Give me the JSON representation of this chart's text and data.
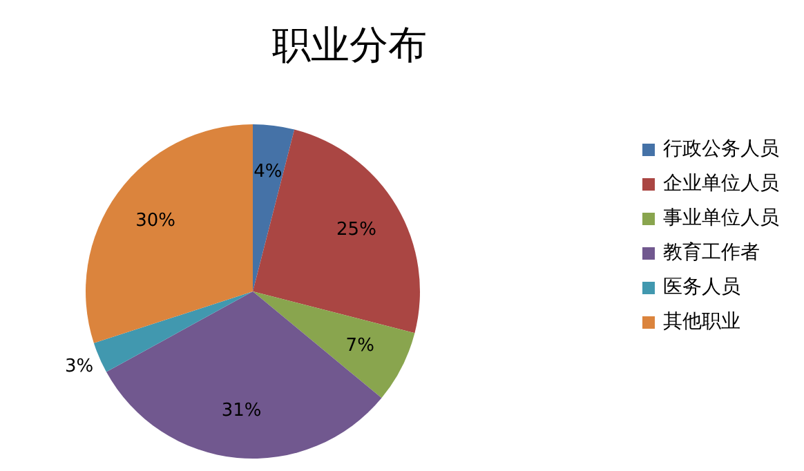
{
  "chart_data": {
    "type": "pie",
    "title": "职业分布",
    "categories": [
      "行政公务人员",
      "企业单位人员",
      "事业单位人员",
      "教育工作者",
      "医务人员",
      "其他职业"
    ],
    "values": [
      4,
      25,
      7,
      31,
      3,
      30
    ],
    "colors": [
      "#4572a7",
      "#aa4643",
      "#89a54e",
      "#71588f",
      "#4198af",
      "#db843d"
    ],
    "value_labels": [
      "4%",
      "25%",
      "7%",
      "31%",
      "3%",
      "30%"
    ],
    "legend": "right"
  }
}
